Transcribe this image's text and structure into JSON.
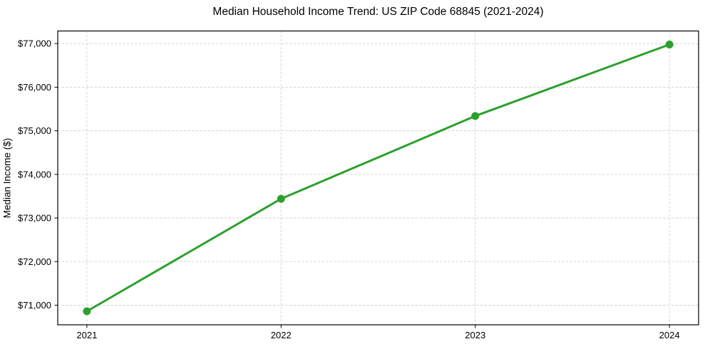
{
  "title": "Median Household Income Trend: US ZIP Code 68845 (2021-2024)",
  "chart_data": {
    "type": "line",
    "title": "Median Household Income Trend: US ZIP Code 68845 (2021-2024)",
    "xlabel": "",
    "ylabel": "Median Income ($)",
    "categories": [
      "2021",
      "2022",
      "2023",
      "2024"
    ],
    "series": [
      {
        "name": "Median Household Income",
        "values": [
          70860,
          73440,
          75340,
          76980
        ]
      }
    ],
    "ylim": [
      70550,
      77290
    ],
    "yticks": [
      71000,
      72000,
      73000,
      74000,
      75000,
      76000,
      77000
    ],
    "ytick_labels": [
      "$71,000",
      "$72,000",
      "$73,000",
      "$74,000",
      "$75,000",
      "$76,000",
      "$77,000"
    ],
    "grid": true,
    "legend": "none",
    "colors": {
      "line": "#2ca02c",
      "marker": "#2ca02c",
      "grid": "#d5d5d5",
      "spine": "#000000",
      "background": "#ffffff"
    }
  }
}
